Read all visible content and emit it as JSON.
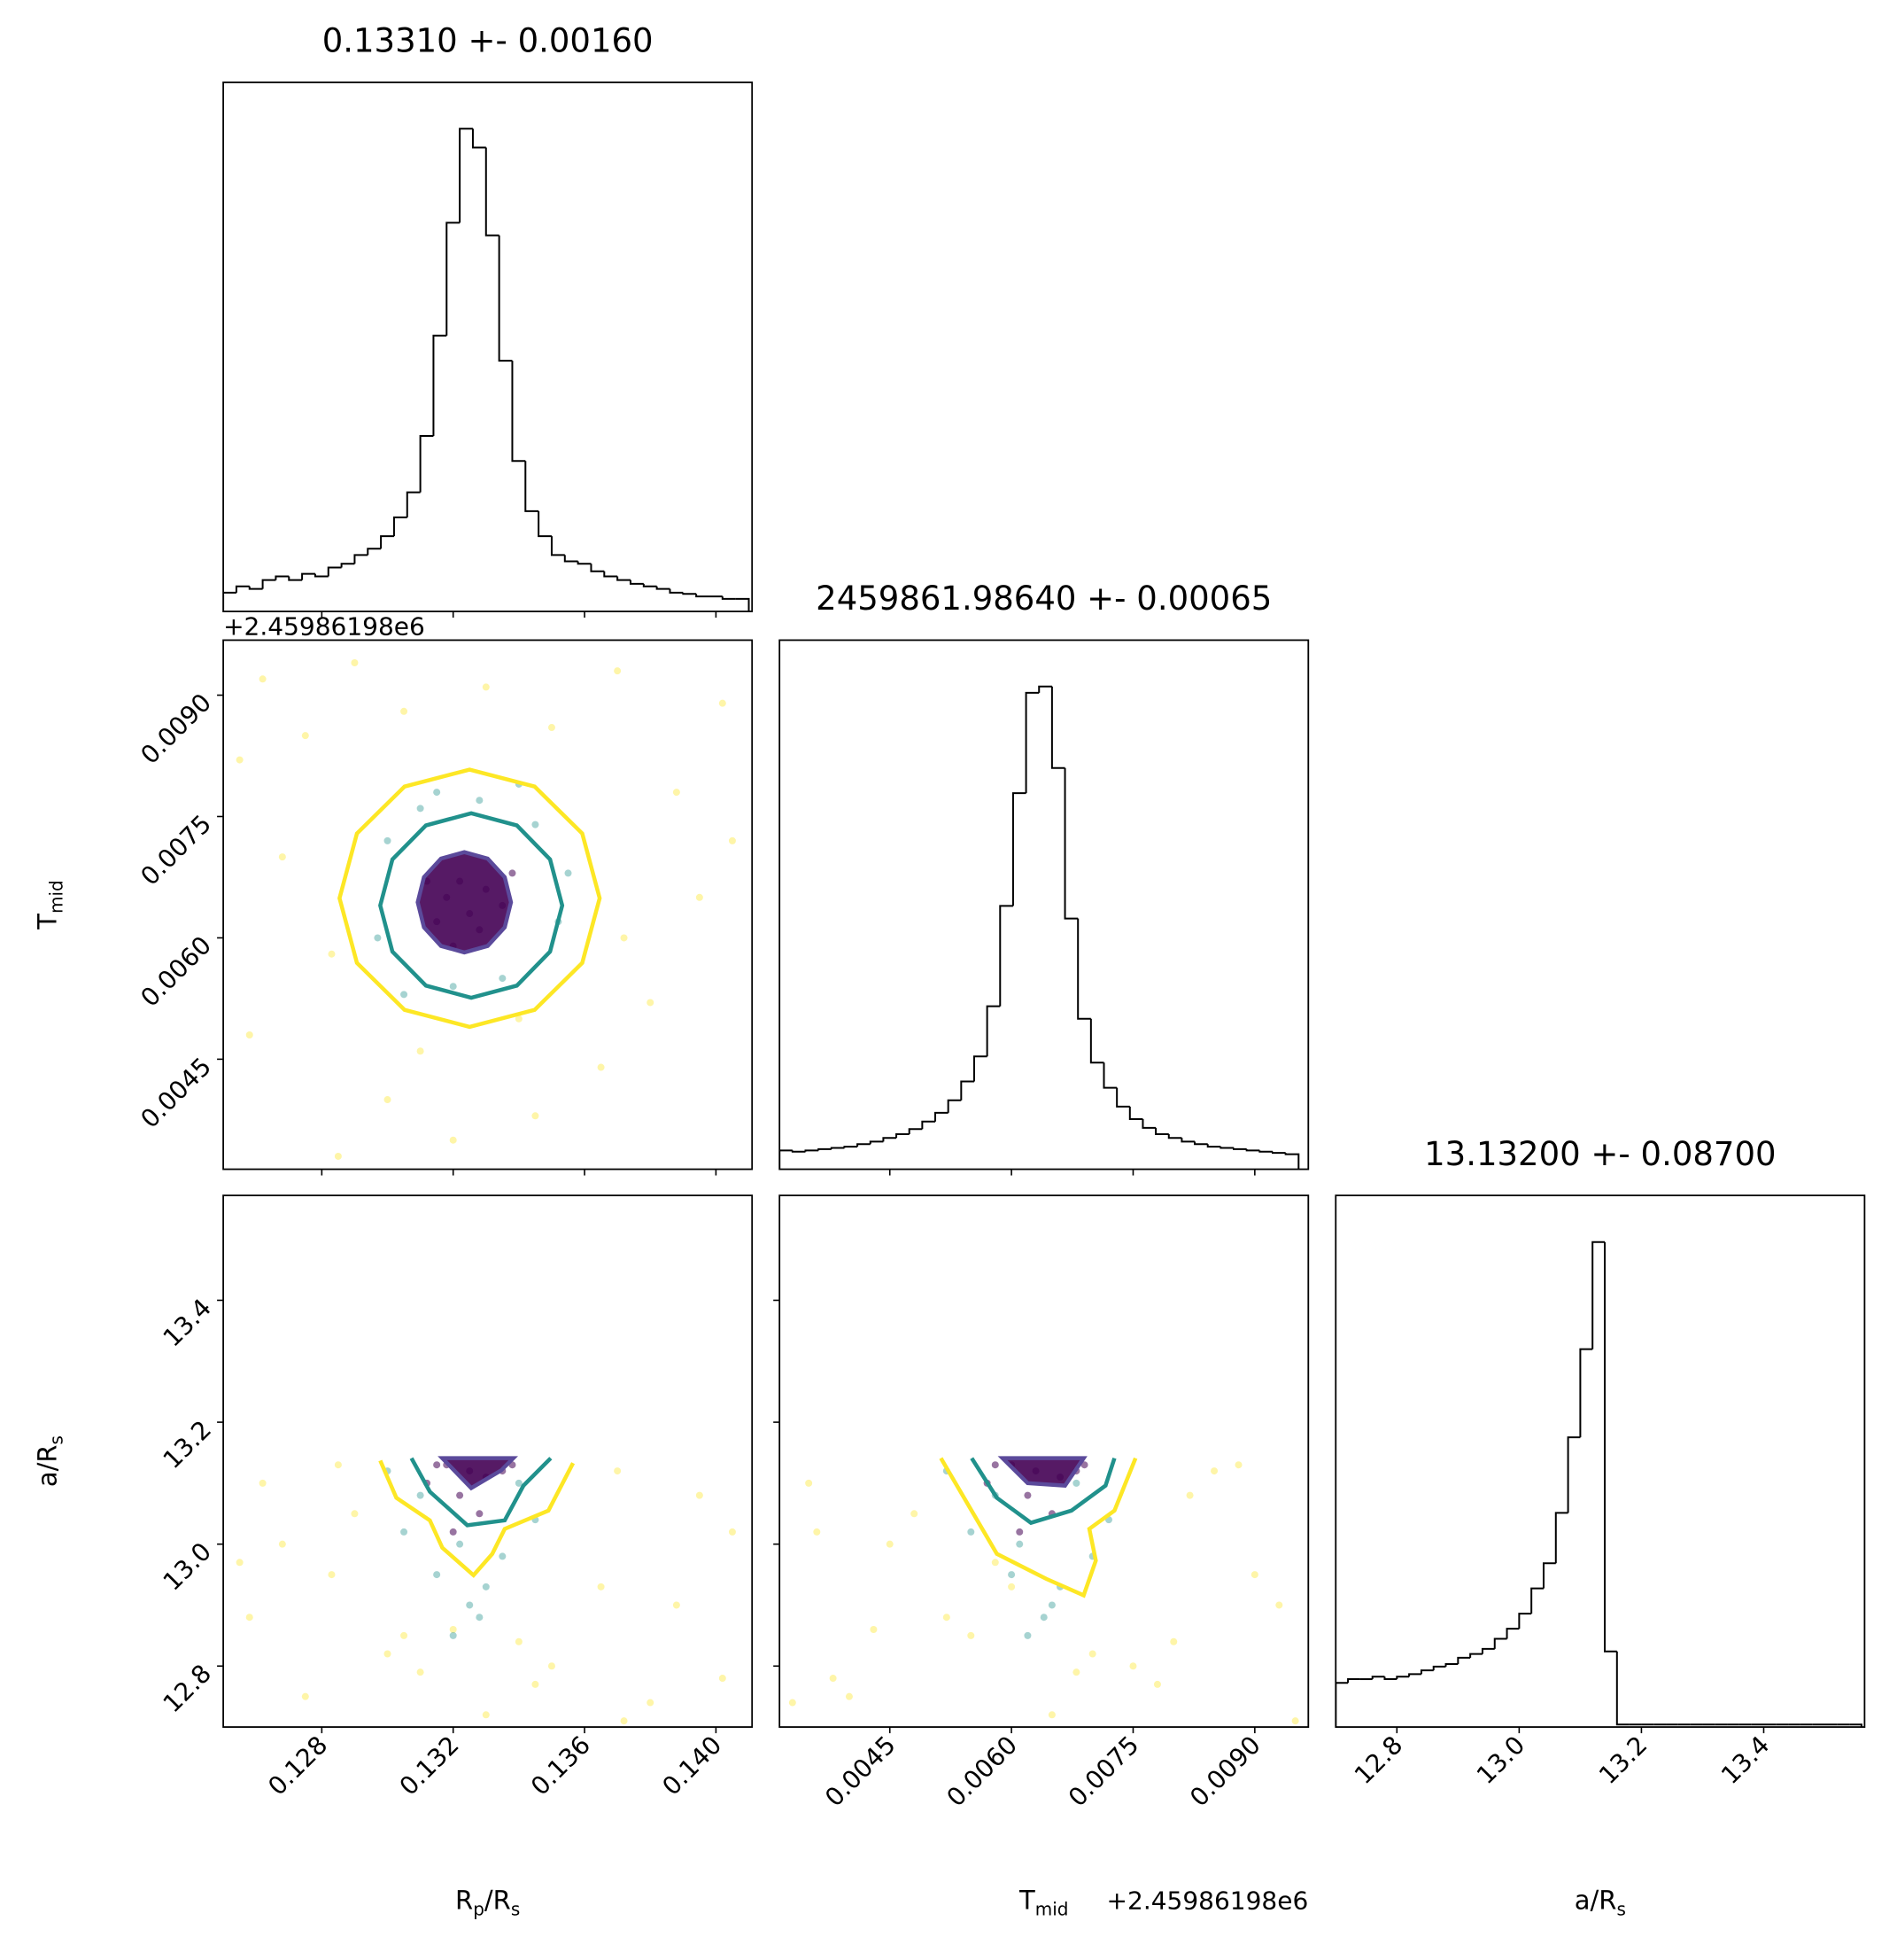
{
  "chart_data": [
    {
      "type": "histogram",
      "title": "0.13310 +- 0.00160",
      "bins": [
        0.125,
        0.1254,
        0.1258,
        0.1262,
        0.1266,
        0.127,
        0.1274,
        0.1278,
        0.1282,
        0.1286,
        0.129,
        0.1294,
        0.1298,
        0.1302,
        0.1306,
        0.131,
        0.1314,
        0.1318,
        0.1322,
        0.1326,
        0.133,
        0.1334,
        0.1338,
        0.1342,
        0.1346,
        0.135,
        0.1354,
        0.1358,
        0.1362,
        0.1366,
        0.137,
        0.1374,
        0.1378,
        0.1382,
        0.1386,
        0.139,
        0.1394,
        0.1398,
        0.1402,
        0.1406,
        0.141
      ],
      "counts": [
        15,
        20,
        18,
        25,
        28,
        25,
        30,
        28,
        35,
        38,
        45,
        50,
        60,
        75,
        95,
        140,
        220,
        310,
        385,
        370,
        300,
        200,
        120,
        80,
        60,
        45,
        40,
        38,
        32,
        28,
        25,
        22,
        20,
        18,
        15,
        14,
        12,
        12,
        10,
        10
      ],
      "xlim": [
        0.125,
        0.1411
      ],
      "ylim": [
        0,
        422
      ],
      "xticks": [
        0.128,
        0.132,
        0.136,
        {
          "value": 0.14,
          "label": "0.140"
        }
      ]
    },
    {
      "type": "scatter",
      "ylabel": [
        "T",
        "mid"
      ],
      "y_offset_label": "+2.45986198e6",
      "xlim": [
        0.125,
        0.1411
      ],
      "ylim": [
        0.00314,
        0.00968
      ],
      "xticks": [
        0.128,
        0.132,
        0.136,
        {
          "value": 0.14,
          "label": "0.140"
        }
      ],
      "yticks": [
        0.0045,
        {
          "value": 0.006,
          "label": "0.0060"
        },
        0.0075,
        {
          "value": 0.009,
          "label": "0.0090"
        }
      ],
      "series": [
        {
          "color": "#fde725",
          "x": [
            0.1262,
            0.1275,
            0.129,
            0.1305,
            0.133,
            0.135,
            0.137,
            0.1388,
            0.1402,
            0.1268,
            0.1283,
            0.1395,
            0.138,
            0.1258,
            0.13,
            0.1345,
            0.1365,
            0.132,
            0.1285,
            0.1372,
            0.1405,
            0.1255,
            0.131,
            0.134
          ],
          "y": [
            0.0092,
            0.0085,
            0.0094,
            0.0088,
            0.0091,
            0.0086,
            0.0093,
            0.0078,
            0.0089,
            0.007,
            0.0058,
            0.0065,
            0.0052,
            0.0048,
            0.004,
            0.0038,
            0.0044,
            0.0035,
            0.0033,
            0.006,
            0.0072,
            0.0082,
            0.0046,
            0.005
          ]
        },
        {
          "color": "#21918c",
          "x": [
            0.13,
            0.131,
            0.1345,
            0.1352,
            0.132,
            0.1335,
            0.1297,
            0.1355,
            0.1315,
            0.134,
            0.1305,
            0.1328
          ],
          "y": [
            0.0072,
            0.0076,
            0.0074,
            0.0062,
            0.0054,
            0.0055,
            0.006,
            0.0068,
            0.0078,
            0.0079,
            0.0053,
            0.0077
          ]
        },
        {
          "color": "#440154",
          "x": [
            0.1318,
            0.1325,
            0.133,
            0.1322,
            0.1315,
            0.1335,
            0.1328,
            0.1312,
            0.1338,
            0.132
          ],
          "y": [
            0.0065,
            0.0063,
            0.0066,
            0.0067,
            0.0062,
            0.0064,
            0.0061,
            0.0067,
            0.0068,
            0.0059
          ]
        }
      ],
      "contours": [
        {
          "color": "#fde725",
          "closed": true,
          "x": [
            0.13646,
            0.13593,
            0.13448,
            0.1325,
            0.13052,
            0.12907,
            0.12854,
            0.12907,
            0.13052,
            0.1325,
            0.13448,
            0.13593
          ],
          "y": [
            0.00649,
            0.00729,
            0.00787,
            0.00808,
            0.00787,
            0.00729,
            0.00649,
            0.00569,
            0.00511,
            0.0049,
            0.00511,
            0.00569
          ]
        },
        {
          "color": "#21918c",
          "closed": true,
          "x": [
            0.13532,
            0.13495,
            0.13394,
            0.13255,
            0.13117,
            0.13015,
            0.12978,
            0.13015,
            0.13117,
            0.13255,
            0.13394,
            0.13495
          ],
          "y": [
            0.0064,
            0.00697,
            0.00739,
            0.00754,
            0.00739,
            0.00697,
            0.0064,
            0.00583,
            0.00541,
            0.00526,
            0.00541,
            0.00583
          ]
        },
        {
          "color": "#5b4a9b",
          "closed": true,
          "fill": "#440154",
          "x": [
            0.13376,
            0.13357,
            0.13305,
            0.13234,
            0.13163,
            0.13111,
            0.13092,
            0.13111,
            0.13163,
            0.13234,
            0.13305,
            0.13357
          ],
          "y": [
            0.00644,
            0.00675,
            0.00698,
            0.00706,
            0.00698,
            0.00675,
            0.00644,
            0.00613,
            0.0059,
            0.00582,
            0.0059,
            0.00613
          ]
        }
      ]
    },
    {
      "type": "histogram",
      "title": "2459861.98640 +- 0.00065",
      "bins": [
        0.00314,
        0.0033,
        0.00346,
        0.00362,
        0.00378,
        0.00394,
        0.0041,
        0.00426,
        0.00442,
        0.00458,
        0.00474,
        0.0049,
        0.00506,
        0.00522,
        0.00538,
        0.00554,
        0.0057,
        0.00586,
        0.00602,
        0.00618,
        0.00634,
        0.0065,
        0.00666,
        0.00682,
        0.00698,
        0.00714,
        0.0073,
        0.00746,
        0.00762,
        0.00778,
        0.00794,
        0.0081,
        0.00826,
        0.00842,
        0.00858,
        0.00874,
        0.0089,
        0.00906,
        0.00922,
        0.00938,
        0.00954
      ],
      "counts": [
        15,
        14,
        15,
        16,
        17,
        18,
        20,
        22,
        25,
        28,
        32,
        38,
        45,
        55,
        70,
        90,
        130,
        210,
        300,
        380,
        385,
        320,
        200,
        120,
        85,
        65,
        50,
        40,
        33,
        28,
        25,
        22,
        20,
        18,
        17,
        16,
        15,
        14,
        13,
        12
      ],
      "xlim": [
        0.00314,
        0.00966
      ],
      "ylim": [
        0,
        422
      ],
      "xticks": [
        0.0045,
        {
          "value": 0.006,
          "label": "0.0060"
        },
        0.0075,
        {
          "value": 0.009,
          "label": "0.0090"
        }
      ]
    },
    {
      "type": "scatter",
      "xlabel": [
        "R",
        "p",
        "/R",
        "s"
      ],
      "ylabel": [
        "a/R",
        "s"
      ],
      "xlim": [
        0.125,
        0.1411
      ],
      "ylim": [
        12.7,
        13.572
      ],
      "xticks": [
        0.128,
        0.132,
        0.136,
        {
          "value": 0.14,
          "label": "0.140"
        }
      ],
      "yticks": [
        12.8,
        {
          "value": 13,
          "label": "13.0"
        },
        13.2,
        13.4
      ],
      "series": [
        {
          "color": "#fde725",
          "x": [
            0.1262,
            0.1275,
            0.129,
            0.1305,
            0.133,
            0.135,
            0.137,
            0.1388,
            0.1402,
            0.1268,
            0.1283,
            0.1395,
            0.138,
            0.1258,
            0.13,
            0.1345,
            0.1365,
            0.132,
            0.1285,
            0.1372,
            0.1405,
            0.1255,
            0.131,
            0.134
          ],
          "y": [
            13.1,
            12.75,
            13.05,
            12.85,
            12.72,
            12.8,
            13.12,
            12.9,
            12.78,
            13,
            12.95,
            13.08,
            12.74,
            12.88,
            12.82,
            12.77,
            12.93,
            12.86,
            13.13,
            12.71,
            13.02,
            12.97,
            12.79,
            12.84
          ]
        },
        {
          "color": "#21918c",
          "x": [
            0.1305,
            0.1315,
            0.1325,
            0.1335,
            0.1345,
            0.132,
            0.133,
            0.131,
            0.134,
            0.13,
            0.1328,
            0.1322
          ],
          "y": [
            13.02,
            12.95,
            12.9,
            12.98,
            13.04,
            12.85,
            12.93,
            13.08,
            13.1,
            13.12,
            12.88,
            13
          ]
        },
        {
          "color": "#440154",
          "x": [
            0.1318,
            0.1325,
            0.133,
            0.1322,
            0.1315,
            0.1335,
            0.1328,
            0.1312,
            0.1338,
            0.132
          ],
          "y": [
            13.13,
            13.12,
            13.11,
            13.08,
            13.13,
            13.12,
            13.05,
            13.1,
            13.13,
            13.02
          ]
        }
      ],
      "contours": [
        {
          "color": "#fde725",
          "x": [
            0.12978,
            0.13027,
            0.13129,
            0.13167,
            0.13262,
            0.13319,
            0.13357,
            0.1349,
            0.13565
          ],
          "y": [
            13.137,
            13.076,
            13.039,
            12.994,
            12.949,
            12.984,
            13.025,
            13.055,
            13.133
          ]
        },
        {
          "color": "#21918c",
          "x": [
            0.13073,
            0.13129,
            0.13243,
            0.13357,
            0.13414,
            0.13497
          ],
          "y": [
            13.141,
            13.086,
            13.031,
            13.039,
            13.096,
            13.141
          ]
        },
        {
          "color": "#5b4a9b",
          "fill": "#440154",
          "x": [
            0.13167,
            0.13255,
            0.13346,
            0.13383
          ],
          "y": [
            13.141,
            13.092,
            13.121,
            13.141
          ]
        }
      ]
    },
    {
      "type": "scatter",
      "xlabel": [
        "T",
        "mid"
      ],
      "x_offset_label": "+2.45986198e6",
      "xlim": [
        0.00314,
        0.00966
      ],
      "ylim": [
        12.7,
        13.572
      ],
      "xticks": [
        0.0045,
        {
          "value": 0.006,
          "label": "0.0060"
        },
        0.0075,
        {
          "value": 0.009,
          "label": "0.0090"
        }
      ],
      "yticks": [
        12.8,
        {
          "value": 13,
          "label": "13.0"
        },
        13.2,
        13.4
      ],
      "series": [
        {
          "color": "#fde725",
          "x": [
            0.0035,
            0.004,
            0.0048,
            0.0055,
            0.0065,
            0.0075,
            0.0085,
            0.0093,
            0.0038,
            0.0045,
            0.009,
            0.0082,
            0.0033,
            0.0052,
            0.007,
            0.0078,
            0.006,
            0.0043,
            0.0088,
            0.0095,
            0.0036,
            0.0058,
            0.0068,
            0.008
          ],
          "y": [
            13.1,
            12.75,
            13.05,
            12.85,
            12.72,
            12.8,
            13.12,
            12.9,
            12.78,
            13,
            12.95,
            13.08,
            12.74,
            12.88,
            12.82,
            12.77,
            12.93,
            12.86,
            13.13,
            12.71,
            13.02,
            12.97,
            12.79,
            12.84
          ]
        },
        {
          "color": "#21918c",
          "x": [
            0.0055,
            0.006,
            0.0065,
            0.007,
            0.0072,
            0.0062,
            0.0066,
            0.0058,
            0.0068,
            0.0052,
            0.0064,
            0.0061
          ],
          "y": [
            13.02,
            12.95,
            12.9,
            12.98,
            13.04,
            12.85,
            12.93,
            13.08,
            13.1,
            13.12,
            12.88,
            13
          ]
        },
        {
          "color": "#440154",
          "x": [
            0.006,
            0.0063,
            0.0066,
            0.0062,
            0.0058,
            0.0068,
            0.0065,
            0.0057,
            0.0069,
            0.0061
          ],
          "y": [
            13.13,
            13.12,
            13.11,
            13.08,
            13.13,
            13.12,
            13.05,
            13.1,
            13.13,
            13.02
          ]
        }
      ],
      "contours": [
        {
          "color": "#fde725",
          "x": [
            0.00513,
            0.00582,
            0.00643,
            0.00689,
            0.00704,
            0.00696,
            0.00727,
            0.00753
          ],
          "y": [
            13.141,
            12.984,
            12.943,
            12.916,
            12.973,
            13.025,
            13.055,
            13.141
          ]
        },
        {
          "color": "#21918c",
          "x": [
            0.00551,
            0.00582,
            0.00624,
            0.00674,
            0.00716,
            0.00727
          ],
          "y": [
            13.141,
            13.076,
            13.035,
            13.055,
            13.096,
            13.141
          ]
        },
        {
          "color": "#5b4a9b",
          "fill": "#440154",
          "x": [
            0.00589,
            0.0062,
            0.00666,
            0.00689
          ],
          "y": [
            13.141,
            13.1,
            13.096,
            13.141
          ]
        }
      ]
    },
    {
      "type": "histogram",
      "title": "13.13200 +- 0.08700",
      "xlabel": [
        "a/R",
        "s"
      ],
      "bins": [
        12.7,
        12.72,
        12.74,
        12.76,
        12.78,
        12.8,
        12.82,
        12.84,
        12.86,
        12.88,
        12.9,
        12.92,
        12.94,
        12.96,
        12.98,
        13,
        13.02,
        13.04,
        13.06,
        13.08,
        13.1,
        13.12,
        13.14,
        13.16,
        13.18,
        13.2,
        13.22,
        13.24,
        13.26,
        13.28,
        13.3,
        13.32,
        13.34,
        13.36,
        13.38,
        13.4,
        13.42,
        13.44,
        13.46,
        13.48,
        13.5,
        13.52,
        13.54,
        13.56
      ],
      "counts": [
        35,
        38,
        38,
        40,
        38,
        40,
        42,
        45,
        48,
        50,
        55,
        58,
        62,
        70,
        78,
        90,
        110,
        130,
        170,
        230,
        300,
        385,
        60,
        2,
        2,
        2,
        2,
        2,
        2,
        2,
        2,
        2,
        2,
        2,
        2,
        2,
        2,
        2,
        2,
        2,
        2,
        2,
        2
      ],
      "xlim": [
        12.7,
        13.565
      ],
      "ylim": [
        0,
        422
      ],
      "xticks": [
        12.8,
        {
          "value": 13,
          "label": "13.0"
        },
        13.2,
        13.4
      ]
    }
  ]
}
